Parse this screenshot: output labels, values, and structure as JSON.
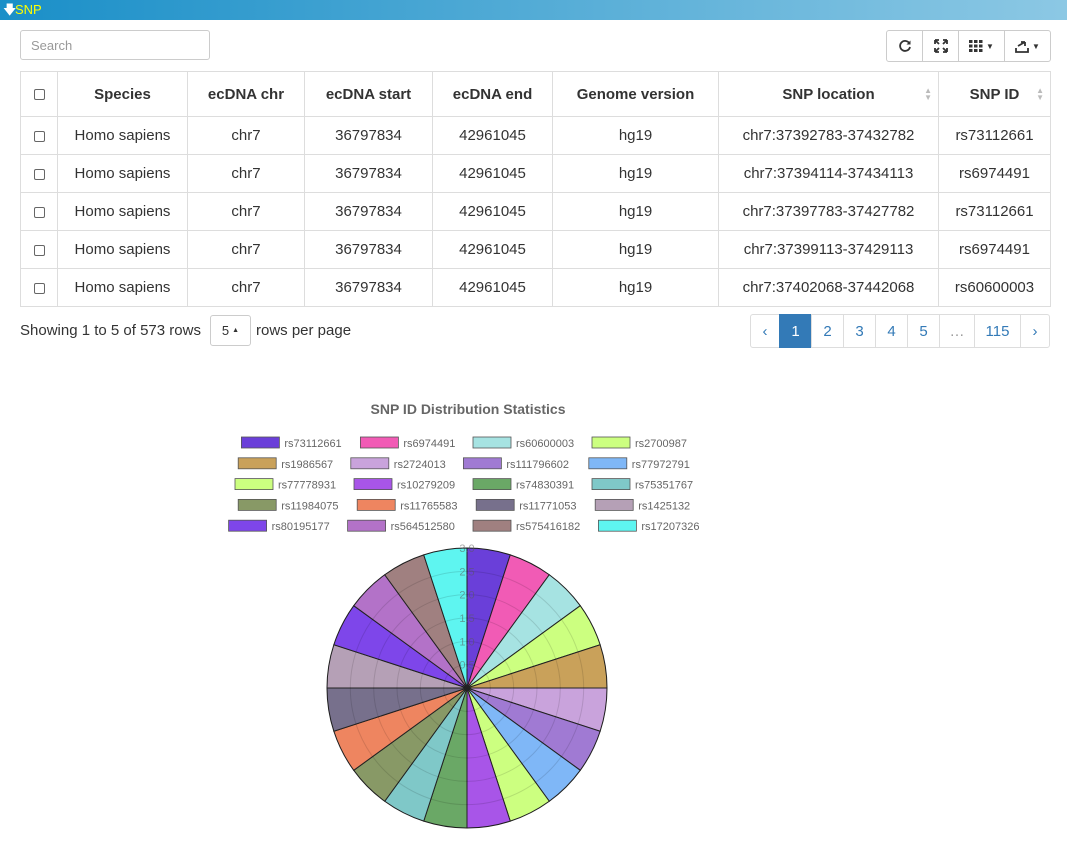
{
  "panel": {
    "title": "SNP"
  },
  "search": {
    "placeholder": "Search"
  },
  "table": {
    "columns": [
      "Species",
      "ecDNA chr",
      "ecDNA start",
      "ecDNA end",
      "Genome version",
      "SNP location",
      "SNP ID"
    ],
    "rows": [
      [
        "Homo sapiens",
        "chr7",
        "36797834",
        "42961045",
        "hg19",
        "chr7:37392783-37432782",
        "rs73112661"
      ],
      [
        "Homo sapiens",
        "chr7",
        "36797834",
        "42961045",
        "hg19",
        "chr7:37394114-37434113",
        "rs6974491"
      ],
      [
        "Homo sapiens",
        "chr7",
        "36797834",
        "42961045",
        "hg19",
        "chr7:37397783-37427782",
        "rs73112661"
      ],
      [
        "Homo sapiens",
        "chr7",
        "36797834",
        "42961045",
        "hg19",
        "chr7:37399113-37429113",
        "rs6974491"
      ],
      [
        "Homo sapiens",
        "chr7",
        "36797834",
        "42961045",
        "hg19",
        "chr7:37402068-37442068",
        "rs60600003"
      ]
    ]
  },
  "pagination": {
    "info": "Showing 1 to 5 of 573 rows",
    "page_size": "5",
    "rows_per_page": "rows per page",
    "prev": "‹",
    "pages": [
      "1",
      "2",
      "3",
      "4",
      "5",
      "…",
      "115"
    ],
    "next": "›"
  },
  "icons": [
    "refresh-icon",
    "fullscreen-icon",
    "columns-icon",
    "export-icon"
  ],
  "chart_data": {
    "type": "pie",
    "title": "SNP ID Distribution Statistics",
    "labels": [
      "rs73112661",
      "rs6974491",
      "rs60600003",
      "rs2700987",
      "rs1986567",
      "rs2724013",
      "rs111796602",
      "rs77972791",
      "rs77778931",
      "rs10279209",
      "rs74830391",
      "rs75351767",
      "rs11984075",
      "rs11765583",
      "rs11771053",
      "rs1425132",
      "rs80195177",
      "rs564512580",
      "rs575416182",
      "rs17207326"
    ],
    "values": [
      3,
      3,
      3,
      3,
      3,
      3,
      3,
      3,
      3,
      3,
      3,
      3,
      3,
      3,
      3,
      3,
      3,
      3,
      3,
      3
    ],
    "colors": [
      "#6a3fd9",
      "#f15bb5",
      "#a6e3e2",
      "#ccff80",
      "#c9a15a",
      "#c9a3dc",
      "#a07ad3",
      "#7fb7f7",
      "#ccff80",
      "#a855e8",
      "#6aa866",
      "#7fc8c8",
      "#889966",
      "#ee8560",
      "#77708c",
      "#b5a0b6",
      "#7e46ea",
      "#b372c8",
      "#a08080",
      "#5ef5f0"
    ],
    "radial_ticks": [
      "3.0",
      "2.5",
      "2.0",
      "1.5",
      "1.0",
      "0.5"
    ],
    "r_max": 3.0,
    "legend_position": "top"
  }
}
